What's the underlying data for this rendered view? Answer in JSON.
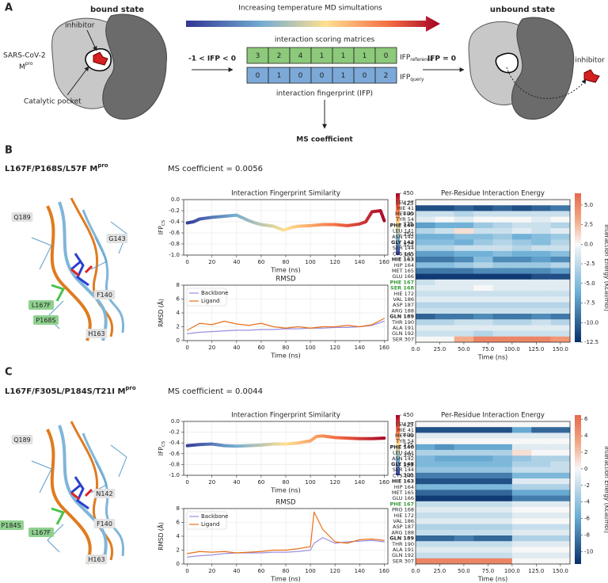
{
  "panel_a": {
    "label": "A",
    "bound": "bound state",
    "arrow_text": "Increasing temperature MD simultations",
    "unbound": "unbound state",
    "inhibitor": "inhibitor",
    "protein": "SARS-CoV-2",
    "protein_m": "M",
    "protein_sup": "pro",
    "pocket": "Catalytic pocket",
    "condition": "-1 < IFP < 0",
    "matrices": "interaction scoring matrices",
    "reference": [
      3,
      2,
      4,
      1,
      1,
      1,
      0
    ],
    "query": [
      0,
      1,
      0,
      0,
      1,
      0,
      2
    ],
    "ifp": "IFP",
    "ref_sub": "reference",
    "query_sub": "query",
    "fingerprint": "interaction fingerprint (IFP)",
    "zero": "IFP = 0",
    "inhibitor_out": "inhibitor",
    "ms": "MS coefficient"
  },
  "panel_b": {
    "label": "B",
    "title": "L167F/P168S/L57F M",
    "title_sup": "pro",
    "ms": "MS coefficient = 0.0056",
    "residues": [
      "Q189",
      "G143",
      "L167F",
      "F140",
      "P168S",
      "H163"
    ]
  },
  "panel_c": {
    "label": "C",
    "title": "L167F/F305L/P184S/T21I M",
    "title_sup": "pro",
    "ms": "MS coefficient = 0.0044",
    "residues": [
      "Q189",
      "P184S",
      "L167F",
      "N142",
      "F140",
      "H163"
    ]
  },
  "chart_data": [
    {
      "type": "line",
      "title": "Interaction Fingerprint Similarity",
      "xlabel": "Time (ns)",
      "ylabel": "IFP",
      "ylabel_sub": "CS",
      "xlim": [
        -3,
        163
      ],
      "ylim": [
        -1.0,
        0.0
      ],
      "xticks": [
        0,
        20,
        40,
        60,
        80,
        100,
        120,
        140,
        160
      ],
      "yticks": [
        {
          "value": -1.0,
          "label": "-1.0"
        },
        -0.8,
        -0.6,
        -0.4,
        -0.2,
        {
          "value": 0.0,
          "label": "0.0"
        }
      ],
      "colormap": [
        "#313695",
        "#74add1",
        "#fee090",
        "#f46d43",
        "#a50026"
      ],
      "colorbar": {
        "label": "Temperature (K)",
        "lim": [
          300,
          450
        ],
        "ticks": [
          300,
          325,
          350,
          375,
          400,
          425,
          450
        ]
      },
      "x": [
        0,
        5,
        10,
        20,
        30,
        40,
        45,
        50,
        55,
        60,
        70,
        78,
        85,
        90,
        100,
        110,
        120,
        130,
        140,
        145,
        150,
        157,
        160
      ],
      "series": [
        {
          "values": [
            -0.42,
            -0.4,
            -0.35,
            -0.32,
            -0.3,
            -0.28,
            -0.33,
            -0.38,
            -0.42,
            -0.45,
            -0.48,
            -0.55,
            -0.5,
            -0.48,
            -0.47,
            -0.45,
            -0.45,
            -0.47,
            -0.44,
            -0.4,
            -0.22,
            -0.2,
            -0.38
          ]
        }
      ]
    },
    {
      "type": "line",
      "title": "RMSD",
      "xlabel": "Time (ns)",
      "ylabel": "RMSD (Å)",
      "xlim": [
        -3,
        163
      ],
      "ylim": [
        0,
        8
      ],
      "xticks": [
        0,
        20,
        40,
        60,
        80,
        100,
        120,
        140,
        160
      ],
      "yticks": [
        0,
        2,
        4,
        6,
        8
      ],
      "legend": "upper left",
      "x": [
        0,
        10,
        20,
        30,
        40,
        50,
        60,
        70,
        80,
        90,
        100,
        110,
        120,
        130,
        140,
        150,
        160
      ],
      "series": [
        {
          "name": "Backbone",
          "color": "#9b8fe0",
          "values": [
            1.0,
            1.2,
            1.3,
            1.4,
            1.5,
            1.5,
            1.6,
            1.6,
            1.7,
            1.7,
            1.8,
            1.8,
            1.9,
            1.9,
            2.0,
            2.2,
            2.8
          ]
        },
        {
          "name": "Ligand",
          "color": "#e8701a",
          "values": [
            1.5,
            2.5,
            2.3,
            2.8,
            2.4,
            2.2,
            2.5,
            2.0,
            1.8,
            2.0,
            1.8,
            2.0,
            2.0,
            2.2,
            2.0,
            2.3,
            3.2
          ]
        }
      ]
    },
    {
      "type": "heatmap",
      "title": "Per-Residue Interaction Energy",
      "xlabel": "Time (ns)",
      "xlim": [
        0,
        160
      ],
      "xbins": [
        0,
        20,
        40,
        60,
        80,
        100,
        120,
        140,
        160
      ],
      "xticks": [
        {
          "value": 0,
          "label": "0.0"
        },
        {
          "value": 25,
          "label": "25.0"
        },
        {
          "value": 50,
          "label": "50.0"
        },
        {
          "value": 75,
          "label": "75.0"
        },
        {
          "value": 100,
          "label": "100.0"
        },
        {
          "value": 125,
          "label": "125.0"
        },
        {
          "value": 150,
          "label": "150.0"
        }
      ],
      "categories": [
        "LEU 27",
        "HIE 41",
        "MET 49",
        "TYR 54",
        "PHE 140",
        "LEU 141",
        "ASN 142",
        "GLY 143",
        "SER 144",
        "CYS 145",
        "HIE 163",
        "HIP 164",
        "MET 165",
        "GLU 166",
        "PHE 167",
        "SER 168",
        "HIE 172",
        "VAL 186",
        "ASP 187",
        "ARG 188",
        "GLN 189",
        "THR 190",
        "ALA 191",
        "GLN 192",
        "SER 307"
      ],
      "bold": [
        4,
        7,
        10,
        14,
        15,
        20
      ],
      "highlight": [
        14,
        15
      ],
      "highlight_color": "#3a9a3a",
      "colormap_negative": [
        "#f7f7f7",
        "#6baed6",
        "#08306b"
      ],
      "colormap_positive": [
        "#f7f7f7",
        "#f4a582",
        "#e66a4c"
      ],
      "zlim": [
        -12.5,
        6.5
      ],
      "colorbar": {
        "label": "Interaction Energy (Kcal/mol)",
        "ticks": [
          -12.5,
          {
            "value": -10.0,
            "label": "-10.0"
          },
          -7.5,
          {
            "value": -5.0,
            "label": "-5.0"
          },
          -2.5,
          {
            "value": 0.0,
            "label": "0.0"
          },
          2.5,
          {
            "value": 5.0,
            "label": "5.0"
          }
        ]
      },
      "values": [
        [
          0,
          0,
          0,
          0,
          0,
          0,
          0,
          0
        ],
        [
          -11,
          -11,
          -10,
          -11,
          -10,
          -11,
          -10,
          -9
        ],
        [
          -2,
          -2,
          -3,
          -2,
          -2,
          -2,
          -2,
          -2
        ],
        [
          -1,
          0,
          -1,
          0,
          0,
          0,
          -1,
          0
        ],
        [
          -7,
          -6,
          -6,
          -4,
          -3,
          -2,
          -2,
          -3
        ],
        [
          -3,
          -2,
          1,
          -2,
          -2,
          -1,
          -2,
          -1
        ],
        [
          -6,
          -6,
          -5,
          -5,
          -4,
          -6,
          -5,
          -4
        ],
        [
          -5,
          -5,
          -6,
          -4,
          -3,
          -4,
          -5,
          -3
        ],
        [
          -3,
          -3,
          -2,
          -2,
          -2,
          -3,
          -2,
          -2
        ],
        [
          -7,
          -7,
          -6,
          -6,
          -5,
          -6,
          -6,
          -5
        ],
        [
          -9,
          -9,
          -8,
          -5,
          -8,
          -8,
          -7,
          -8
        ],
        [
          -5,
          -5,
          -4,
          -3,
          -4,
          -4,
          -4,
          -3
        ],
        [
          -9,
          -9,
          -9,
          -8,
          -8,
          -8,
          -8,
          -7
        ],
        [
          -12,
          -12,
          -12,
          -12,
          -12,
          -12,
          -11,
          -11
        ],
        [
          -2,
          -1,
          -1,
          -1,
          -1,
          -1,
          -1,
          -1
        ],
        [
          -1,
          -1,
          -1,
          0,
          -1,
          -1,
          -1,
          -1
        ],
        [
          -2,
          -2,
          -2,
          -2,
          -2,
          -2,
          -2,
          -2
        ],
        [
          -1,
          -1,
          -1,
          -1,
          -1,
          -1,
          -1,
          -1
        ],
        [
          -3,
          -3,
          -3,
          -3,
          -3,
          -3,
          -3,
          -3
        ],
        [
          -2,
          -2,
          -2,
          -2,
          -2,
          -2,
          -2,
          -2
        ],
        [
          -10,
          -9,
          -9,
          -8,
          -9,
          -9,
          -8,
          -9
        ],
        [
          -3,
          -3,
          -2,
          -2,
          -3,
          -3,
          -2,
          -3
        ],
        [
          -1,
          -1,
          -1,
          -1,
          -1,
          -1,
          -1,
          -1
        ],
        [
          -2,
          -2,
          -2,
          -3,
          -2,
          -2,
          -2,
          -2
        ],
        [
          0,
          0,
          3,
          5,
          5,
          5,
          5,
          4
        ]
      ]
    },
    {
      "type": "line",
      "title": "Interaction Fingerprint Similarity",
      "xlabel": "Time (ns)",
      "ylabel": "IFP",
      "ylabel_sub": "CS",
      "xlim": [
        -3,
        163
      ],
      "ylim": [
        -1.0,
        0.0
      ],
      "xticks": [
        0,
        20,
        40,
        60,
        80,
        100,
        120,
        140,
        160
      ],
      "yticks": [
        {
          "value": -1.0,
          "label": "-1.0"
        },
        -0.8,
        -0.6,
        -0.4,
        -0.2,
        {
          "value": 0.0,
          "label": "0.0"
        }
      ],
      "colormap": [
        "#313695",
        "#74add1",
        "#fee090",
        "#f46d43",
        "#a50026"
      ],
      "colorbar": {
        "label": "Temperature (K)",
        "lim": [
          300,
          450
        ],
        "ticks": [
          300,
          325,
          350,
          375,
          400,
          425,
          450
        ]
      },
      "x": [
        0,
        10,
        20,
        30,
        40,
        50,
        60,
        70,
        80,
        90,
        100,
        105,
        110,
        120,
        130,
        140,
        150,
        160
      ],
      "series": [
        {
          "values": [
            -0.45,
            -0.43,
            -0.42,
            -0.45,
            -0.46,
            -0.45,
            -0.44,
            -0.42,
            -0.42,
            -0.4,
            -0.36,
            -0.28,
            -0.27,
            -0.3,
            -0.31,
            -0.32,
            -0.32,
            -0.31
          ]
        }
      ]
    },
    {
      "type": "line",
      "title": "RMSD",
      "xlabel": "Time (ns)",
      "ylabel": "RMSD (Å)",
      "xlim": [
        -3,
        163
      ],
      "ylim": [
        0,
        8
      ],
      "xticks": [
        0,
        20,
        40,
        60,
        80,
        100,
        120,
        140,
        160
      ],
      "yticks": [
        0,
        2,
        4,
        6,
        8
      ],
      "legend": "upper left",
      "x": [
        0,
        10,
        20,
        30,
        40,
        50,
        60,
        70,
        80,
        90,
        100,
        103,
        110,
        120,
        130,
        140,
        150,
        160
      ],
      "series": [
        {
          "name": "Backbone",
          "color": "#9b8fe0",
          "values": [
            1.0,
            1.2,
            1.3,
            1.5,
            1.6,
            1.6,
            1.6,
            1.7,
            1.7,
            1.8,
            2.0,
            3.0,
            3.8,
            3.0,
            3.2,
            3.3,
            3.4,
            3.2
          ]
        },
        {
          "name": "Ligand",
          "color": "#e8701a",
          "values": [
            1.5,
            1.8,
            1.7,
            1.8,
            1.6,
            1.7,
            1.8,
            2.0,
            2.0,
            2.2,
            2.5,
            7.5,
            5.0,
            3.2,
            3.0,
            3.5,
            3.6,
            3.4
          ]
        }
      ]
    },
    {
      "type": "heatmap",
      "title": "Per-Residue Interaction Energy",
      "xlabel": "Time (ns)",
      "xlim": [
        0,
        160
      ],
      "xbins": [
        0,
        20,
        40,
        60,
        80,
        100,
        120,
        140,
        160
      ],
      "xticks": [
        {
          "value": 0,
          "label": "0.0"
        },
        {
          "value": 25,
          "label": "25.0"
        },
        {
          "value": 50,
          "label": "50.0"
        },
        {
          "value": 75,
          "label": "75.0"
        },
        {
          "value": 100,
          "label": "100.0"
        },
        {
          "value": 125,
          "label": "125.0"
        },
        {
          "value": 150,
          "label": "150.0"
        }
      ],
      "categories": [
        "LEU 27",
        "HIE 41",
        "MET 49",
        "TYR 54",
        "PHE 140",
        "LEU 141",
        "ASN 142",
        "GLY 143",
        "SER 144",
        "CYS 145",
        "HIE 163",
        "HIP 164",
        "MET 165",
        "GLU 166",
        "PHE 167",
        "PRO 168",
        "HIE 172",
        "VAL 186",
        "ASP 187",
        "ARG 188",
        "GLN 189",
        "THR 190",
        "ALA 191",
        "GLN 192",
        "SER 307"
      ],
      "bold": [
        4,
        7,
        10,
        14,
        20
      ],
      "highlight": [
        14
      ],
      "highlight_color": "#3a9a3a",
      "colormap_negative": [
        "#f7f7f7",
        "#6baed6",
        "#08306b"
      ],
      "colormap_positive": [
        "#f7f7f7",
        "#f4a582",
        "#e66a4c"
      ],
      "zlim": [
        -11.5,
        6.5
      ],
      "colorbar": {
        "label": "Interaction Energy (Kcal/mol)",
        "ticks": [
          -10,
          -8,
          -6,
          -4,
          -2,
          0,
          2,
          4,
          6
        ]
      },
      "values": [
        [
          0,
          0,
          0,
          0,
          0,
          0,
          0,
          0
        ],
        [
          -10,
          -10,
          -10,
          -10,
          -10,
          -6,
          -9,
          -9
        ],
        [
          -1,
          -1,
          -1,
          -1,
          -1,
          -1,
          -1,
          -1
        ],
        [
          0,
          0,
          0,
          0,
          0,
          0,
          0,
          0
        ],
        [
          -6,
          -7,
          -6,
          -6,
          -6,
          -1,
          -1,
          -1
        ],
        [
          -3,
          -3,
          -3,
          -3,
          -3,
          1,
          0,
          0
        ],
        [
          -5,
          -6,
          -6,
          -6,
          -5,
          -4,
          -3,
          -3
        ],
        [
          -5,
          -5,
          -5,
          -5,
          -5,
          -3,
          -3,
          -2
        ],
        [
          -4,
          -4,
          -4,
          -4,
          -4,
          -2,
          -2,
          -2
        ],
        [
          -8,
          -8,
          -8,
          -8,
          -8,
          -5,
          -5,
          -5
        ],
        [
          -10,
          -10,
          -10,
          -10,
          -10,
          -1,
          -1,
          -1
        ],
        [
          -5,
          -5,
          -5,
          -5,
          -5,
          -3,
          -3,
          -3
        ],
        [
          -9,
          -9,
          -9,
          -9,
          -9,
          -6,
          -6,
          -6
        ],
        [
          -11,
          -11,
          -11,
          -11,
          -11,
          -8,
          -8,
          -8
        ],
        [
          -2,
          -2,
          -2,
          -2,
          -2,
          -1,
          -1,
          -1
        ],
        [
          -1,
          -1,
          -1,
          -1,
          -1,
          0,
          0,
          0
        ],
        [
          -2,
          -2,
          -2,
          -2,
          -2,
          -1,
          -1,
          -1
        ],
        [
          -1,
          -1,
          -1,
          -1,
          -1,
          0,
          0,
          0
        ],
        [
          -3,
          -3,
          -3,
          -3,
          -3,
          -2,
          -2,
          -2
        ],
        [
          -2,
          -2,
          -2,
          -2,
          -2,
          -1,
          -1,
          -1
        ],
        [
          -9,
          -9,
          -8,
          -9,
          -9,
          -3,
          -3,
          -3
        ],
        [
          -2,
          -2,
          -2,
          -2,
          -2,
          -1,
          -1,
          -1
        ],
        [
          -1,
          -1,
          -1,
          -1,
          -1,
          0,
          0,
          0
        ],
        [
          -2,
          -2,
          -2,
          -2,
          -2,
          -1,
          -1,
          -1
        ],
        [
          5,
          5,
          5,
          5,
          5,
          0,
          0,
          0
        ]
      ]
    }
  ]
}
